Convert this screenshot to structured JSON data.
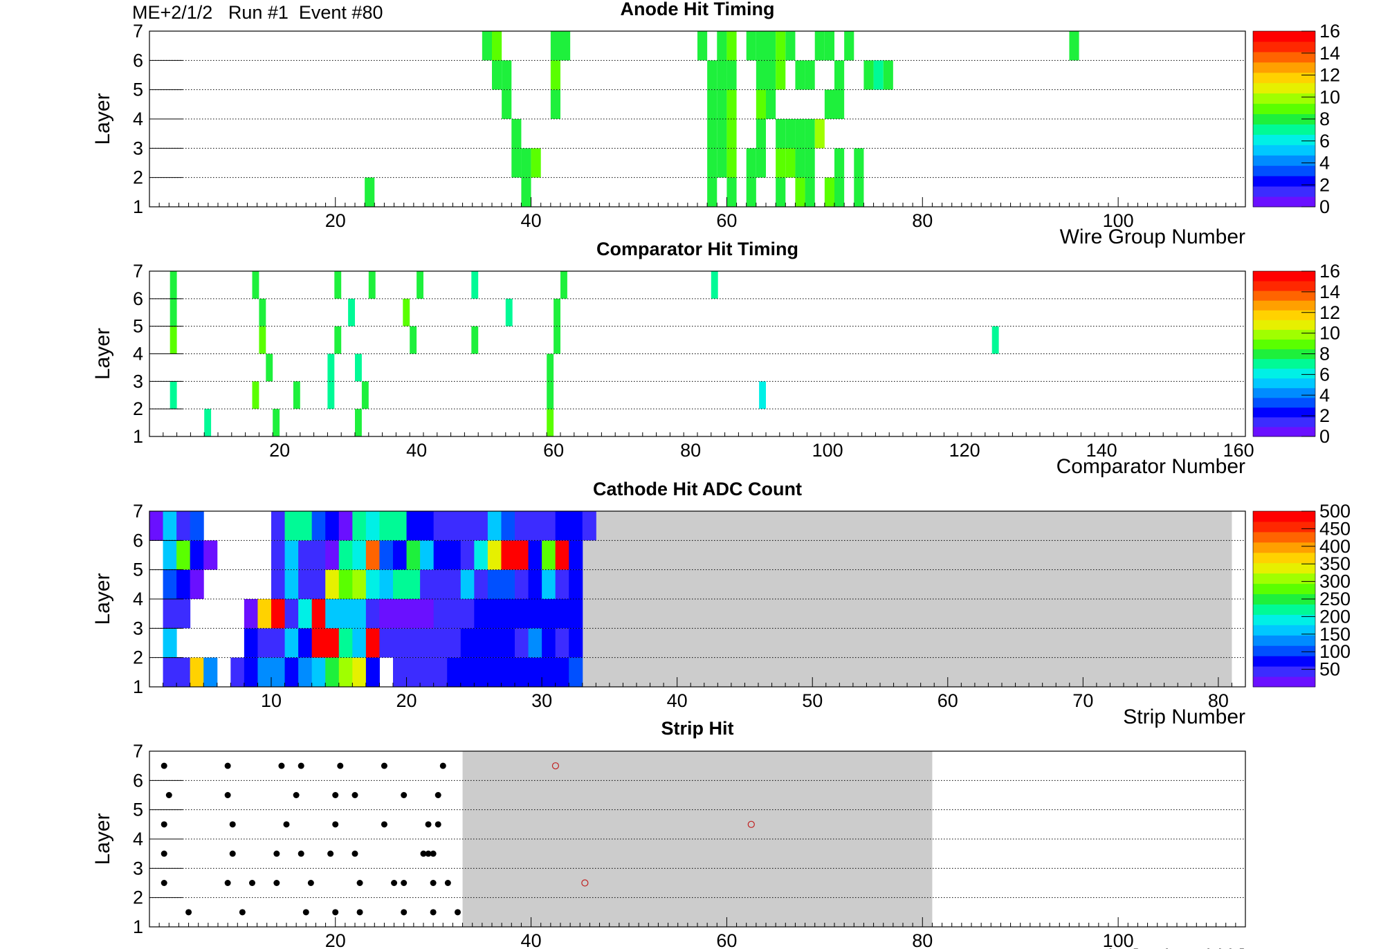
{
  "header": {
    "text": "ME+2/1/2   Run #1  Event #80"
  },
  "colors": {
    "palette": [
      "#6a10ff",
      "#3c2cff",
      "#0000ff",
      "#0050ff",
      "#008cff",
      "#00c8ff",
      "#00f0e6",
      "#00fa96",
      "#1ef03c",
      "#5aff00",
      "#a0ff00",
      "#e6f000",
      "#ffd200",
      "#ffa000",
      "#ff6400",
      "#ff2800",
      "#ff0000"
    ],
    "empty_fill": "#cccccc",
    "grid": "#000000",
    "marker": "#000000",
    "open_marker": "#c02020"
  },
  "chart_data": [
    {
      "type": "heatmap",
      "title": "Anode Hit Timing",
      "xlabel": "Wire Group Number",
      "ylabel": "Layer",
      "xlim": [
        1,
        113
      ],
      "ylim": [
        1,
        7
      ],
      "x_ticks": [
        20,
        40,
        60,
        80,
        100
      ],
      "y_ticks": [
        1,
        2,
        3,
        4,
        5,
        6,
        7
      ],
      "z_range": [
        0,
        16
      ],
      "z_ticks": [
        0,
        2,
        4,
        6,
        8,
        10,
        12,
        14,
        16
      ],
      "grid": "dotted horizontal",
      "cells": [
        {
          "layer": 1,
          "x": 23,
          "z": 8
        },
        {
          "layer": 1,
          "x": 39,
          "z": 8
        },
        {
          "layer": 1,
          "x": 58,
          "z": 8
        },
        {
          "layer": 1,
          "x": 60,
          "z": 8
        },
        {
          "layer": 1,
          "x": 62,
          "z": 8
        },
        {
          "layer": 1,
          "x": 65,
          "z": 8
        },
        {
          "layer": 1,
          "x": 67,
          "z": 9
        },
        {
          "layer": 1,
          "x": 68,
          "z": 8
        },
        {
          "layer": 1,
          "x": 70,
          "z": 9
        },
        {
          "layer": 1,
          "x": 71,
          "z": 8
        },
        {
          "layer": 1,
          "x": 73,
          "z": 8
        },
        {
          "layer": 2,
          "x": 38,
          "z": 8
        },
        {
          "layer": 2,
          "x": 39,
          "z": 8
        },
        {
          "layer": 2,
          "x": 40,
          "z": 9
        },
        {
          "layer": 2,
          "x": 58,
          "z": 8
        },
        {
          "layer": 2,
          "x": 59,
          "z": 8
        },
        {
          "layer": 2,
          "x": 60,
          "z": 9
        },
        {
          "layer": 2,
          "x": 62,
          "z": 8
        },
        {
          "layer": 2,
          "x": 63,
          "z": 8
        },
        {
          "layer": 2,
          "x": 65,
          "z": 9
        },
        {
          "layer": 2,
          "x": 66,
          "z": 9
        },
        {
          "layer": 2,
          "x": 67,
          "z": 8
        },
        {
          "layer": 2,
          "x": 68,
          "z": 8
        },
        {
          "layer": 2,
          "x": 71,
          "z": 8
        },
        {
          "layer": 2,
          "x": 73,
          "z": 8
        },
        {
          "layer": 3,
          "x": 38,
          "z": 8
        },
        {
          "layer": 3,
          "x": 58,
          "z": 8
        },
        {
          "layer": 3,
          "x": 59,
          "z": 8
        },
        {
          "layer": 3,
          "x": 60,
          "z": 9
        },
        {
          "layer": 3,
          "x": 63,
          "z": 8
        },
        {
          "layer": 3,
          "x": 65,
          "z": 8
        },
        {
          "layer": 3,
          "x": 66,
          "z": 8
        },
        {
          "layer": 3,
          "x": 67,
          "z": 8
        },
        {
          "layer": 3,
          "x": 68,
          "z": 8
        },
        {
          "layer": 3,
          "x": 69,
          "z": 10
        },
        {
          "layer": 4,
          "x": 37,
          "z": 8
        },
        {
          "layer": 4,
          "x": 42,
          "z": 8
        },
        {
          "layer": 4,
          "x": 58,
          "z": 8
        },
        {
          "layer": 4,
          "x": 59,
          "z": 8
        },
        {
          "layer": 4,
          "x": 60,
          "z": 9
        },
        {
          "layer": 4,
          "x": 63,
          "z": 9
        },
        {
          "layer": 4,
          "x": 64,
          "z": 8
        },
        {
          "layer": 4,
          "x": 70,
          "z": 8
        },
        {
          "layer": 4,
          "x": 71,
          "z": 8
        },
        {
          "layer": 5,
          "x": 36,
          "z": 8
        },
        {
          "layer": 5,
          "x": 37,
          "z": 8
        },
        {
          "layer": 5,
          "x": 42,
          "z": 9
        },
        {
          "layer": 5,
          "x": 58,
          "z": 8
        },
        {
          "layer": 5,
          "x": 59,
          "z": 8
        },
        {
          "layer": 5,
          "x": 60,
          "z": 8
        },
        {
          "layer": 5,
          "x": 63,
          "z": 8
        },
        {
          "layer": 5,
          "x": 64,
          "z": 8
        },
        {
          "layer": 5,
          "x": 65,
          "z": 9
        },
        {
          "layer": 5,
          "x": 67,
          "z": 8
        },
        {
          "layer": 5,
          "x": 68,
          "z": 8
        },
        {
          "layer": 5,
          "x": 71,
          "z": 8
        },
        {
          "layer": 5,
          "x": 74,
          "z": 8
        },
        {
          "layer": 5,
          "x": 75,
          "z": 7
        },
        {
          "layer": 5,
          "x": 76,
          "z": 8
        },
        {
          "layer": 6,
          "x": 35,
          "z": 8
        },
        {
          "layer": 6,
          "x": 36,
          "z": 9
        },
        {
          "layer": 6,
          "x": 42,
          "z": 8
        },
        {
          "layer": 6,
          "x": 43,
          "z": 8
        },
        {
          "layer": 6,
          "x": 57,
          "z": 8
        },
        {
          "layer": 6,
          "x": 59,
          "z": 8
        },
        {
          "layer": 6,
          "x": 60,
          "z": 9
        },
        {
          "layer": 6,
          "x": 62,
          "z": 8
        },
        {
          "layer": 6,
          "x": 63,
          "z": 8
        },
        {
          "layer": 6,
          "x": 64,
          "z": 8
        },
        {
          "layer": 6,
          "x": 65,
          "z": 9
        },
        {
          "layer": 6,
          "x": 66,
          "z": 8
        },
        {
          "layer": 6,
          "x": 69,
          "z": 8
        },
        {
          "layer": 6,
          "x": 70,
          "z": 8
        },
        {
          "layer": 6,
          "x": 72,
          "z": 8
        },
        {
          "layer": 6,
          "x": 95,
          "z": 8
        }
      ]
    },
    {
      "type": "heatmap",
      "title": "Comparator Hit Timing",
      "xlabel": "Comparator Number",
      "ylabel": "Layer",
      "xlim": [
        1,
        161
      ],
      "ylim": [
        1,
        7
      ],
      "x_ticks": [
        20,
        40,
        60,
        80,
        100,
        120,
        140,
        160
      ],
      "y_ticks": [
        1,
        2,
        3,
        4,
        5,
        6,
        7
      ],
      "z_range": [
        0,
        16
      ],
      "z_ticks": [
        0,
        2,
        4,
        6,
        8,
        10,
        12,
        14,
        16
      ],
      "grid": "dotted horizontal",
      "cells": [
        {
          "layer": 1,
          "x": 9,
          "z": 7
        },
        {
          "layer": 1,
          "x": 19,
          "z": 8
        },
        {
          "layer": 1,
          "x": 31,
          "z": 8
        },
        {
          "layer": 1,
          "x": 59,
          "z": 9
        },
        {
          "layer": 2,
          "x": 4,
          "z": 7
        },
        {
          "layer": 2,
          "x": 16,
          "z": 9
        },
        {
          "layer": 2,
          "x": 22,
          "z": 8
        },
        {
          "layer": 2,
          "x": 27,
          "z": 7
        },
        {
          "layer": 2,
          "x": 32,
          "z": 8
        },
        {
          "layer": 2,
          "x": 59,
          "z": 8
        },
        {
          "layer": 2,
          "x": 90,
          "z": 6
        },
        {
          "layer": 3,
          "x": 18,
          "z": 8
        },
        {
          "layer": 3,
          "x": 27,
          "z": 7
        },
        {
          "layer": 3,
          "x": 31,
          "z": 7
        },
        {
          "layer": 3,
          "x": 59,
          "z": 8
        },
        {
          "layer": 4,
          "x": 4,
          "z": 9
        },
        {
          "layer": 4,
          "x": 17,
          "z": 9
        },
        {
          "layer": 4,
          "x": 28,
          "z": 8
        },
        {
          "layer": 4,
          "x": 39,
          "z": 8
        },
        {
          "layer": 4,
          "x": 48,
          "z": 8
        },
        {
          "layer": 4,
          "x": 60,
          "z": 8
        },
        {
          "layer": 4,
          "x": 124,
          "z": 7
        },
        {
          "layer": 5,
          "x": 4,
          "z": 8
        },
        {
          "layer": 5,
          "x": 17,
          "z": 8
        },
        {
          "layer": 5,
          "x": 30,
          "z": 7
        },
        {
          "layer": 5,
          "x": 38,
          "z": 9
        },
        {
          "layer": 5,
          "x": 53,
          "z": 7
        },
        {
          "layer": 5,
          "x": 60,
          "z": 8
        },
        {
          "layer": 6,
          "x": 4,
          "z": 8
        },
        {
          "layer": 6,
          "x": 16,
          "z": 8
        },
        {
          "layer": 6,
          "x": 28,
          "z": 8
        },
        {
          "layer": 6,
          "x": 33,
          "z": 8
        },
        {
          "layer": 6,
          "x": 40,
          "z": 8
        },
        {
          "layer": 6,
          "x": 48,
          "z": 7
        },
        {
          "layer": 6,
          "x": 61,
          "z": 8
        },
        {
          "layer": 6,
          "x": 83,
          "z": 7
        }
      ]
    },
    {
      "type": "heatmap",
      "title": "Cathode Hit ADC Count",
      "xlabel": "Strip Number",
      "ylabel": "Layer",
      "xlim": [
        1,
        82
      ],
      "ylim": [
        1,
        7
      ],
      "x_ticks": [
        10,
        20,
        30,
        40,
        50,
        60,
        70,
        80
      ],
      "y_ticks": [
        1,
        2,
        3,
        4,
        5,
        6,
        7
      ],
      "z_range": [
        0,
        500
      ],
      "z_ticks": [
        50,
        100,
        150,
        200,
        250,
        300,
        350,
        400,
        450,
        500
      ],
      "empty_region_x": [
        33,
        81
      ],
      "rows": [
        {
          "layer": 1,
          "values": [
            null,
            50,
            50,
            360,
            120,
            null,
            40,
            80,
            130,
            130,
            70,
            120,
            150,
            250,
            300,
            330,
            60,
            null,
            30,
            30,
            40,
            40,
            60,
            70,
            80,
            80,
            80,
            80,
            60,
            60,
            80,
            100
          ]
        },
        {
          "layer": 2,
          "values": [
            null,
            150,
            null,
            null,
            null,
            null,
            null,
            80,
            30,
            30,
            150,
            60,
            480,
            480,
            230,
            160,
            480,
            30,
            30,
            40,
            40,
            40,
            40,
            60,
            60,
            60,
            60,
            40,
            120,
            80,
            40,
            80
          ]
        },
        {
          "layer": 3,
          "values": [
            null,
            40,
            40,
            null,
            null,
            null,
            null,
            20,
            360,
            480,
            40,
            180,
            480,
            160,
            160,
            160,
            40,
            20,
            20,
            20,
            20,
            40,
            40,
            40,
            60,
            60,
            60,
            60,
            60,
            60,
            60,
            60
          ]
        },
        {
          "layer": 4,
          "values": [
            null,
            90,
            60,
            20,
            null,
            null,
            null,
            null,
            null,
            40,
            150,
            40,
            40,
            350,
            290,
            310,
            200,
            150,
            230,
            210,
            40,
            40,
            40,
            150,
            40,
            90,
            90,
            50,
            70,
            150,
            40,
            80
          ]
        },
        {
          "layer": 5,
          "values": [
            null,
            150,
            280,
            70,
            20,
            null,
            null,
            null,
            null,
            50,
            150,
            40,
            50,
            20,
            230,
            180,
            420,
            100,
            60,
            250,
            160,
            80,
            80,
            40,
            180,
            350,
            500,
            500,
            70,
            280,
            500,
            80
          ]
        },
        {
          "layer": 6,
          "values": [
            20,
            150,
            50,
            100,
            null,
            null,
            null,
            null,
            null,
            40,
            230,
            230,
            100,
            60,
            20,
            230,
            180,
            230,
            230,
            60,
            60,
            30,
            30,
            40,
            40,
            150,
            100,
            50,
            50,
            50,
            60,
            80,
            50
          ]
        }
      ]
    },
    {
      "type": "scatter",
      "title": "Strip Hit",
      "xlabel": "Local X[Strip Width]",
      "ylabel": "Layer",
      "xlim": [
        1,
        113
      ],
      "ylim": [
        1,
        7
      ],
      "x_ticks": [
        20,
        40,
        60,
        80,
        100
      ],
      "y_ticks": [
        1,
        2,
        3,
        4,
        5,
        6,
        7
      ],
      "shaded_region_x": [
        33,
        81
      ],
      "series": [
        {
          "marker": "filled",
          "points": [
            [
              5,
              1.5
            ],
            [
              10.5,
              1.5
            ],
            [
              17,
              1.5
            ],
            [
              20,
              1.5
            ],
            [
              22.5,
              1.5
            ],
            [
              27,
              1.5
            ],
            [
              30,
              1.5
            ],
            [
              32.5,
              1.5
            ],
            [
              2.5,
              2.5
            ],
            [
              9,
              2.5
            ],
            [
              11.5,
              2.5
            ],
            [
              14,
              2.5
            ],
            [
              17.5,
              2.5
            ],
            [
              22.5,
              2.5
            ],
            [
              26,
              2.5
            ],
            [
              27,
              2.5
            ],
            [
              30,
              2.5
            ],
            [
              31.5,
              2.5
            ],
            [
              2.5,
              3.5
            ],
            [
              9.5,
              3.5
            ],
            [
              14,
              3.5
            ],
            [
              16.5,
              3.5
            ],
            [
              19.5,
              3.5
            ],
            [
              22,
              3.5
            ],
            [
              29,
              3.5
            ],
            [
              29.5,
              3.5
            ],
            [
              30,
              3.5
            ],
            [
              2.5,
              4.5
            ],
            [
              9.5,
              4.5
            ],
            [
              15,
              4.5
            ],
            [
              20,
              4.5
            ],
            [
              25,
              4.5
            ],
            [
              29.5,
              4.5
            ],
            [
              30.5,
              4.5
            ],
            [
              3,
              5.5
            ],
            [
              9,
              5.5
            ],
            [
              16,
              5.5
            ],
            [
              20,
              5.5
            ],
            [
              22,
              5.5
            ],
            [
              27,
              5.5
            ],
            [
              30.5,
              5.5
            ],
            [
              2.5,
              6.5
            ],
            [
              9,
              6.5
            ],
            [
              14.5,
              6.5
            ],
            [
              16.5,
              6.5
            ],
            [
              20.5,
              6.5
            ],
            [
              25,
              6.5
            ],
            [
              31,
              6.5
            ]
          ]
        },
        {
          "marker": "open",
          "points": [
            [
              42.5,
              6.5
            ],
            [
              62.5,
              4.5
            ],
            [
              45.5,
              2.5
            ]
          ]
        }
      ]
    }
  ]
}
